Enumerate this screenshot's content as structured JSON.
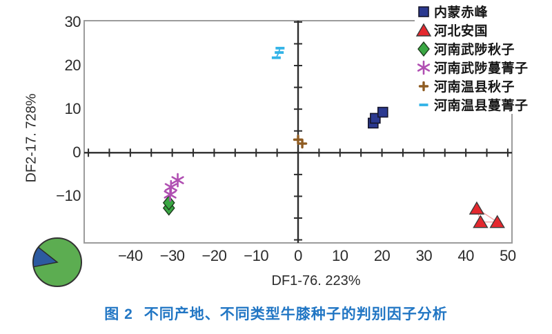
{
  "figure": {
    "caption_prefix": "图 2",
    "caption_text": "不同产地、不同类型牛膝种子的判别因子分析"
  },
  "colors": {
    "axis": "#2b2b2b",
    "frame": "#9b9b9b",
    "caption_blue": "#2176c4",
    "background": "#ffffff"
  },
  "chart_data": {
    "type": "scatter",
    "xlabel": "DF1-76. 223%",
    "ylabel": "DF2-17. 728%",
    "xlim": [
      -51,
      51
    ],
    "ylim": [
      -20.7,
      30.3
    ],
    "tick_step": 5,
    "grid": false,
    "legend_position": "top-right",
    "x_tick_labels": [
      {
        "v": -40,
        "t": "−40"
      },
      {
        "v": -30,
        "t": "−30"
      },
      {
        "v": -20,
        "t": "−20"
      },
      {
        "v": -10,
        "t": "−10"
      },
      {
        "v": 0,
        "t": "0"
      },
      {
        "v": 10,
        "t": "10"
      },
      {
        "v": 20,
        "t": "20"
      },
      {
        "v": 30,
        "t": "30"
      },
      {
        "v": 40,
        "t": "40"
      },
      {
        "v": 50,
        "t": "50"
      }
    ],
    "y_tick_labels": [
      {
        "v": 30,
        "t": "30"
      },
      {
        "v": 20,
        "t": "20"
      },
      {
        "v": 10,
        "t": "10"
      },
      {
        "v": 0,
        "t": "0"
      },
      {
        "v": -10,
        "t": "−10"
      }
    ],
    "series": [
      {
        "name": "内蒙赤峰",
        "marker": "square",
        "color": "#2b3990",
        "points": [
          [
            17.9,
            6.8
          ],
          [
            18.4,
            7.9
          ],
          [
            20.2,
            9.3
          ]
        ]
      },
      {
        "name": "河北安国",
        "marker": "triangle",
        "color": "#e4282e",
        "connect": "#f29b9b",
        "points": [
          [
            42.6,
            -12.8
          ],
          [
            43.5,
            -15.9
          ],
          [
            47.5,
            -15.9
          ]
        ]
      },
      {
        "name": "河南武陟秋子",
        "marker": "diamond",
        "color": "#3aa743",
        "points": [
          [
            -30.8,
            -12.7
          ],
          [
            -30.8,
            -11.5
          ]
        ]
      },
      {
        "name": "河南武陟蔓菁子",
        "marker": "asterisk",
        "color": "#b04fb2",
        "points": [
          [
            -28.7,
            -6.3
          ],
          [
            -30.3,
            -7.9
          ],
          [
            -30.5,
            -9.6
          ]
        ]
      },
      {
        "name": "河南温县秋子",
        "marker": "plus",
        "color": "#8f5c22",
        "points": [
          [
            0.0,
            3.0
          ],
          [
            1.0,
            2.1
          ]
        ]
      },
      {
        "name": "河南温县蔓菁子",
        "marker": "dash",
        "color": "#33b3e7",
        "connect": "#33b3e7",
        "points": [
          [
            -4.3,
            24.0
          ],
          [
            -4.5,
            23.0
          ],
          [
            -5.2,
            21.8
          ]
        ]
      }
    ],
    "inset_pie": {
      "slices": [
        {
          "color": "#5cad51",
          "fraction": 0.863
        },
        {
          "color": "#2c5aa0",
          "fraction": 0.137
        }
      ],
      "minor_start_angle_deg": 169
    }
  }
}
